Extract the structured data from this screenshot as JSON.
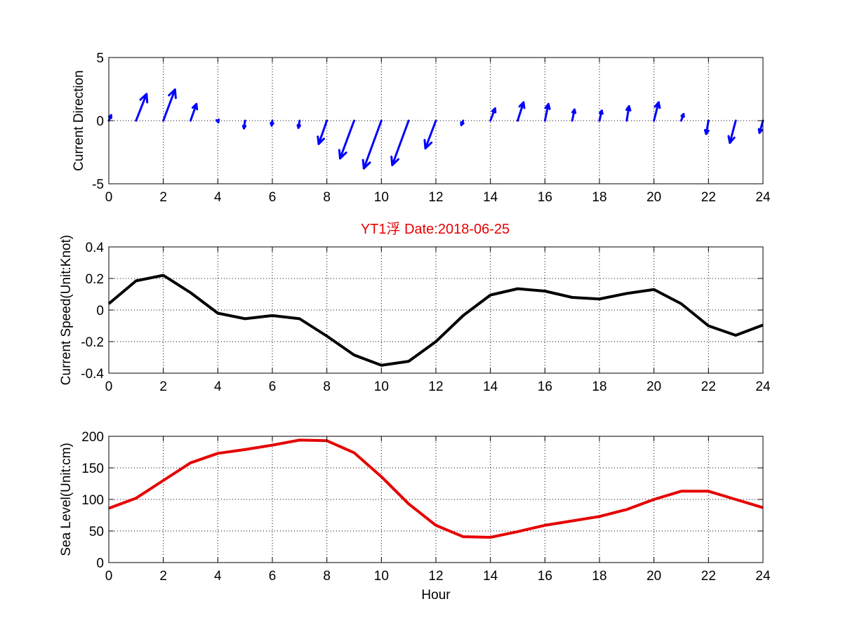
{
  "figure": {
    "title": "YT1浮    Date:2018-06-25",
    "title_color": "#e60000"
  },
  "chart_data": [
    {
      "type": "quiver",
      "ylabel": "Current Direction",
      "xlabel": "",
      "xlim": [
        0,
        24
      ],
      "ylim": [
        -5,
        5
      ],
      "xticks": [
        0,
        2,
        4,
        6,
        8,
        10,
        12,
        14,
        16,
        18,
        20,
        22,
        24
      ],
      "yticks": [
        -5,
        0,
        5
      ],
      "grid": true,
      "color": "#0000ff",
      "x": [
        0,
        1,
        2,
        3,
        4,
        5,
        6,
        7,
        8,
        9,
        10,
        11,
        12,
        13,
        14,
        15,
        16,
        17,
        18,
        19,
        20,
        21,
        22,
        23,
        24
      ],
      "u": [
        0.1,
        0.45,
        0.5,
        0.25,
        0.02,
        -0.05,
        -0.03,
        -0.05,
        -0.35,
        -0.6,
        -0.75,
        -0.7,
        -0.45,
        -0.08,
        0.2,
        0.25,
        0.15,
        0.1,
        0.1,
        0.1,
        0.2,
        0.1,
        -0.1,
        -0.25,
        -0.15
      ],
      "v": [
        0.5,
        2.4,
        2.8,
        1.5,
        -0.15,
        -0.7,
        -0.45,
        -0.65,
        -2.1,
        -3.4,
        -4.3,
        -4.0,
        -2.5,
        -0.4,
        1.1,
        1.65,
        1.5,
        1.0,
        0.9,
        1.3,
        1.65,
        0.6,
        -1.2,
        -2.0,
        -1.1
      ]
    },
    {
      "type": "line",
      "ylabel": "Current Speed(Unit:Knot)",
      "xlabel": "",
      "xlim": [
        0,
        24
      ],
      "ylim": [
        -0.4,
        0.4
      ],
      "xticks": [
        0,
        2,
        4,
        6,
        8,
        10,
        12,
        14,
        16,
        18,
        20,
        22,
        24
      ],
      "yticks": [
        "-0.4",
        "-0.2",
        "0",
        "0.2",
        "0.4"
      ],
      "grid": true,
      "series": [
        {
          "color": "#000000",
          "x": [
            0,
            1,
            2,
            3,
            4,
            5,
            6,
            7,
            8,
            9,
            10,
            11,
            12,
            13,
            14,
            15,
            16,
            17,
            18,
            19,
            20,
            21,
            22,
            23,
            24
          ],
          "y": [
            0.04,
            0.185,
            0.22,
            0.11,
            -0.02,
            -0.055,
            -0.035,
            -0.055,
            -0.165,
            -0.285,
            -0.35,
            -0.325,
            -0.2,
            -0.035,
            0.095,
            0.135,
            0.12,
            0.08,
            0.07,
            0.105,
            0.13,
            0.04,
            -0.1,
            -0.16,
            -0.095
          ]
        }
      ]
    },
    {
      "type": "line",
      "ylabel": "Sea Level(Unit:cm)",
      "xlabel": "Hour",
      "xlim": [
        0,
        24
      ],
      "ylim": [
        0,
        200
      ],
      "xticks": [
        0,
        2,
        4,
        6,
        8,
        10,
        12,
        14,
        16,
        18,
        20,
        22,
        24
      ],
      "yticks": [
        0,
        50,
        100,
        150,
        200
      ],
      "grid": true,
      "series": [
        {
          "color": "#e60000",
          "x": [
            0,
            1,
            2,
            3,
            4,
            5,
            6,
            7,
            8,
            9,
            10,
            11,
            12,
            13,
            14,
            15,
            16,
            17,
            18,
            19,
            20,
            21,
            22,
            23,
            24
          ],
          "y": [
            86,
            102,
            130,
            158,
            173,
            179,
            186,
            194,
            193,
            174,
            136,
            93,
            59,
            41,
            40,
            49,
            59,
            66,
            73,
            84,
            100,
            113,
            113,
            100,
            87
          ]
        }
      ]
    }
  ]
}
